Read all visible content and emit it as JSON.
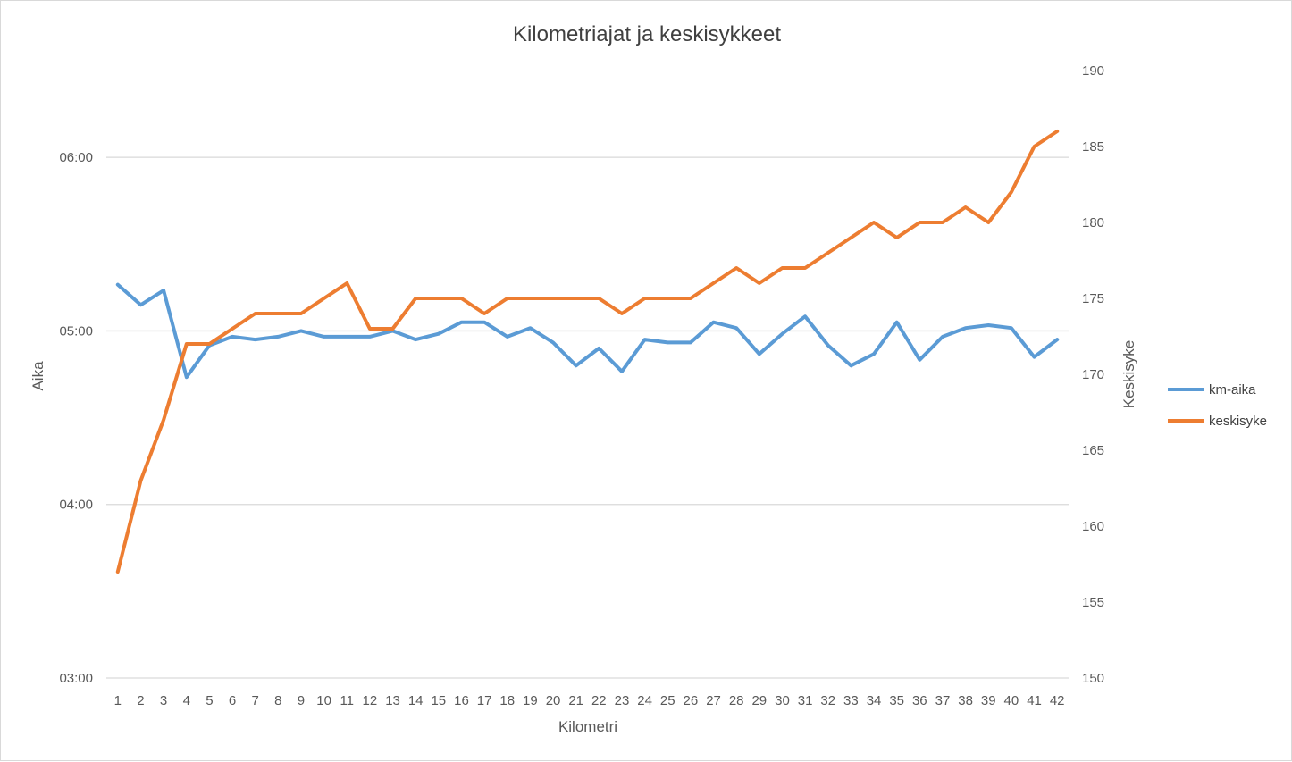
{
  "chart_data": {
    "type": "line",
    "title": "Kilometriajat ja keskisykkeet",
    "xlabel": "Kilometri",
    "ylabel": "Aika",
    "y2label": "Keskisyke",
    "categories": [
      "1",
      "2",
      "3",
      "4",
      "5",
      "6",
      "7",
      "8",
      "9",
      "10",
      "11",
      "12",
      "13",
      "14",
      "15",
      "16",
      "17",
      "18",
      "19",
      "20",
      "21",
      "22",
      "23",
      "24",
      "25",
      "26",
      "27",
      "28",
      "29",
      "30",
      "31",
      "32",
      "33",
      "34",
      "35",
      "36",
      "37",
      "38",
      "39",
      "40",
      "41",
      "42"
    ],
    "y_ticks": [
      "03:00",
      "04:00",
      "05:00",
      "06:00"
    ],
    "y_range_minutes": [
      3,
      6.5
    ],
    "y2_ticks": [
      "150",
      "155",
      "160",
      "165",
      "170",
      "175",
      "180",
      "185",
      "190"
    ],
    "y2_range": [
      150,
      190
    ],
    "grid": true,
    "legend_position": "right",
    "series": [
      {
        "name": "km-aika",
        "axis": "left",
        "color": "#5b9bd5",
        "values": [
          "05:16",
          "05:09",
          "05:14",
          "04:44",
          "04:55",
          "04:58",
          "04:57",
          "04:58",
          "05:00",
          "04:58",
          "04:58",
          "04:58",
          "05:00",
          "04:57",
          "04:59",
          "05:03",
          "05:03",
          "04:58",
          "05:01",
          "04:56",
          "04:48",
          "04:54",
          "04:46",
          "04:57",
          "04:56",
          "04:56",
          "05:03",
          "05:01",
          "04:52",
          "04:59",
          "05:05",
          "04:55",
          "04:48",
          "04:52",
          "05:03",
          "04:50",
          "04:58",
          "05:01",
          "05:02",
          "05:01",
          "04:51",
          "04:57"
        ]
      },
      {
        "name": "keskisyke",
        "axis": "right",
        "color": "#ed7d31",
        "values": [
          157,
          163,
          167,
          172,
          172,
          173,
          174,
          174,
          174,
          175,
          176,
          173,
          173,
          175,
          175,
          175,
          174,
          175,
          175,
          175,
          175,
          175,
          174,
          175,
          175,
          175,
          176,
          177,
          176,
          177,
          177,
          178,
          179,
          180,
          179,
          180,
          180,
          181,
          180,
          182,
          185,
          186
        ]
      }
    ]
  }
}
